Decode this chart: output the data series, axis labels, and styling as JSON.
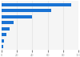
{
  "values": [
    91,
    65,
    40,
    16,
    10,
    6,
    3,
    2
  ],
  "bar_color": "#1a73d4",
  "background_color": "#ffffff",
  "plot_bg_color": "#f5f5f5",
  "xlim": [
    0,
    100
  ],
  "bar_height": 0.55,
  "figsize": [
    1.0,
    0.71
  ],
  "dpi": 100
}
